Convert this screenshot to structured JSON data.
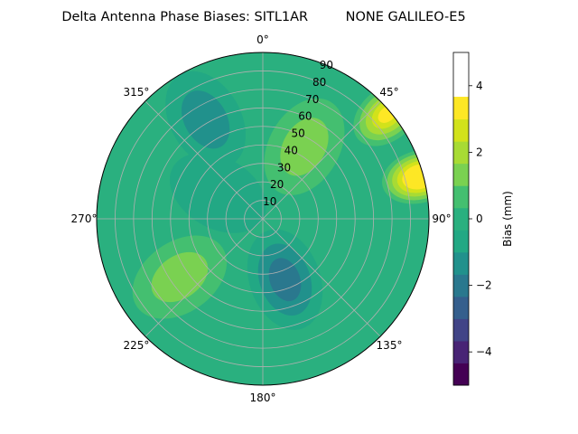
{
  "chart_data": {
    "type": "heatmap",
    "projection": "polar",
    "title": "Delta Antenna Phase Biases: SITL1AR         NONE GALILEO-E5",
    "azimuth_direction": "clockwise",
    "azimuth_zero": "top",
    "azimuth_ticks": [
      "0°",
      "45°",
      "90°",
      "135°",
      "180°",
      "225°",
      "270°",
      "315°"
    ],
    "radial_ticks": [
      "10",
      "20",
      "30",
      "40",
      "50",
      "60",
      "70",
      "80",
      "90"
    ],
    "radial_range": [
      0,
      90
    ],
    "grid": true,
    "colorbar": {
      "label": "Bias (mm)",
      "range": [
        -5,
        5
      ],
      "ticks": [
        "−4",
        "−2",
        "0",
        "2",
        "4"
      ],
      "tick_values": [
        -4,
        -2,
        0,
        2,
        4
      ],
      "levels": [
        -5,
        -4.333,
        -3.667,
        -3,
        -2.333,
        -1.667,
        -1,
        -0.333,
        0.333,
        1,
        1.667,
        2.333,
        3,
        3.667,
        4.333,
        5
      ],
      "colors": [
        "#440154",
        "#482475",
        "#414487",
        "#355f8d",
        "#2a788e",
        "#21918c",
        "#22a884",
        "#2ab07f",
        "#44bf70",
        "#7ad151",
        "#a8db34",
        "#d2e21b",
        "#fde725"
      ],
      "colormap": "viridis"
    },
    "regions": [
      {
        "name": "low",
        "az": 330,
        "el": 62,
        "value": -1.6
      },
      {
        "name": "low",
        "az": 160,
        "el": 35,
        "value": -1.9
      },
      {
        "name": "low",
        "az": 300,
        "el": 28,
        "value": -1.0
      },
      {
        "name": "high",
        "az": 235,
        "el": 55,
        "value": 1.7
      },
      {
        "name": "high",
        "az": 30,
        "el": 45,
        "value": 1.6
      },
      {
        "name": "high",
        "az": 75,
        "el": 88,
        "value": 4.6
      },
      {
        "name": "high",
        "az": 50,
        "el": 88,
        "value": 3.5
      }
    ]
  }
}
